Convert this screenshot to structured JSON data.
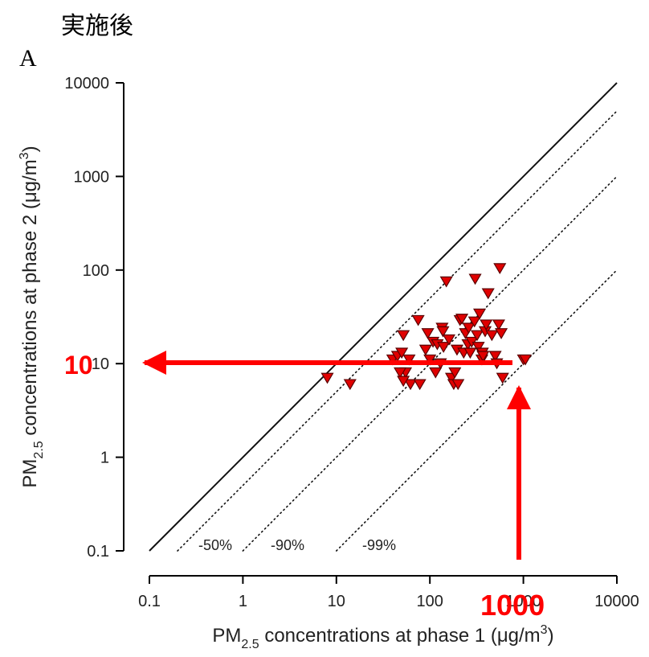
{
  "heading": "実施後",
  "panel_label": "A",
  "annotations": {
    "y_callout": "10",
    "x_callout": "1000",
    "arrow_color": "#ff0000"
  },
  "chart_data": {
    "type": "scatter",
    "x_scale": "log",
    "y_scale": "log",
    "xlim": [
      0.1,
      10000
    ],
    "ylim": [
      0.1,
      10000
    ],
    "x_ticks": [
      "0.1",
      "1",
      "10",
      "100",
      "1000",
      "10000"
    ],
    "y_ticks": [
      "0.1",
      "1",
      "10",
      "100",
      "1000",
      "10000"
    ],
    "xlabel": {
      "prefix": "PM",
      "sub": "2.5",
      "mid": " concentrations at phase 1 (μg/m",
      "sup": "3",
      "suffix": ")"
    },
    "ylabel": {
      "prefix": "PM",
      "sub": "2.5",
      "mid": " concentrations at phase 2 (μg/m",
      "sup": "3",
      "suffix": ")"
    },
    "reference_lines": [
      {
        "label": "",
        "ratio": 1,
        "style": "solid"
      },
      {
        "label": "-50%",
        "ratio": 0.5,
        "style": "dotted"
      },
      {
        "label": "-90%",
        "ratio": 0.1,
        "style": "dotted"
      },
      {
        "label": "-99%",
        "ratio": 0.01,
        "style": "dotted"
      }
    ],
    "marker": {
      "shape": "down-triangle",
      "fill": "#e00000",
      "stroke": "#5a0000"
    },
    "points": [
      [
        8,
        7
      ],
      [
        14,
        6
      ],
      [
        40,
        11
      ],
      [
        45,
        12
      ],
      [
        50,
        13
      ],
      [
        52,
        20
      ],
      [
        55,
        8
      ],
      [
        60,
        11
      ],
      [
        62,
        6
      ],
      [
        48,
        8
      ],
      [
        52,
        6.5
      ],
      [
        75,
        29
      ],
      [
        78,
        6
      ],
      [
        90,
        14
      ],
      [
        95,
        21
      ],
      [
        100,
        11
      ],
      [
        108,
        17
      ],
      [
        115,
        8
      ],
      [
        120,
        16
      ],
      [
        130,
        10
      ],
      [
        135,
        24
      ],
      [
        138,
        22
      ],
      [
        140,
        15
      ],
      [
        150,
        75
      ],
      [
        160,
        18
      ],
      [
        170,
        7
      ],
      [
        180,
        6
      ],
      [
        185,
        8
      ],
      [
        195,
        14
      ],
      [
        200,
        6
      ],
      [
        210,
        29
      ],
      [
        220,
        30
      ],
      [
        230,
        13
      ],
      [
        240,
        21
      ],
      [
        255,
        16
      ],
      [
        260,
        24
      ],
      [
        270,
        13
      ],
      [
        280,
        17
      ],
      [
        300,
        28
      ],
      [
        305,
        80
      ],
      [
        320,
        20
      ],
      [
        330,
        15
      ],
      [
        340,
        34
      ],
      [
        360,
        11
      ],
      [
        365,
        13
      ],
      [
        370,
        12
      ],
      [
        390,
        22
      ],
      [
        400,
        26
      ],
      [
        420,
        56
      ],
      [
        460,
        20
      ],
      [
        500,
        12
      ],
      [
        520,
        10
      ],
      [
        545,
        26
      ],
      [
        560,
        104
      ],
      [
        580,
        21
      ],
      [
        600,
        7
      ],
      [
        1000,
        11
      ],
      [
        1050,
        11
      ]
    ]
  }
}
